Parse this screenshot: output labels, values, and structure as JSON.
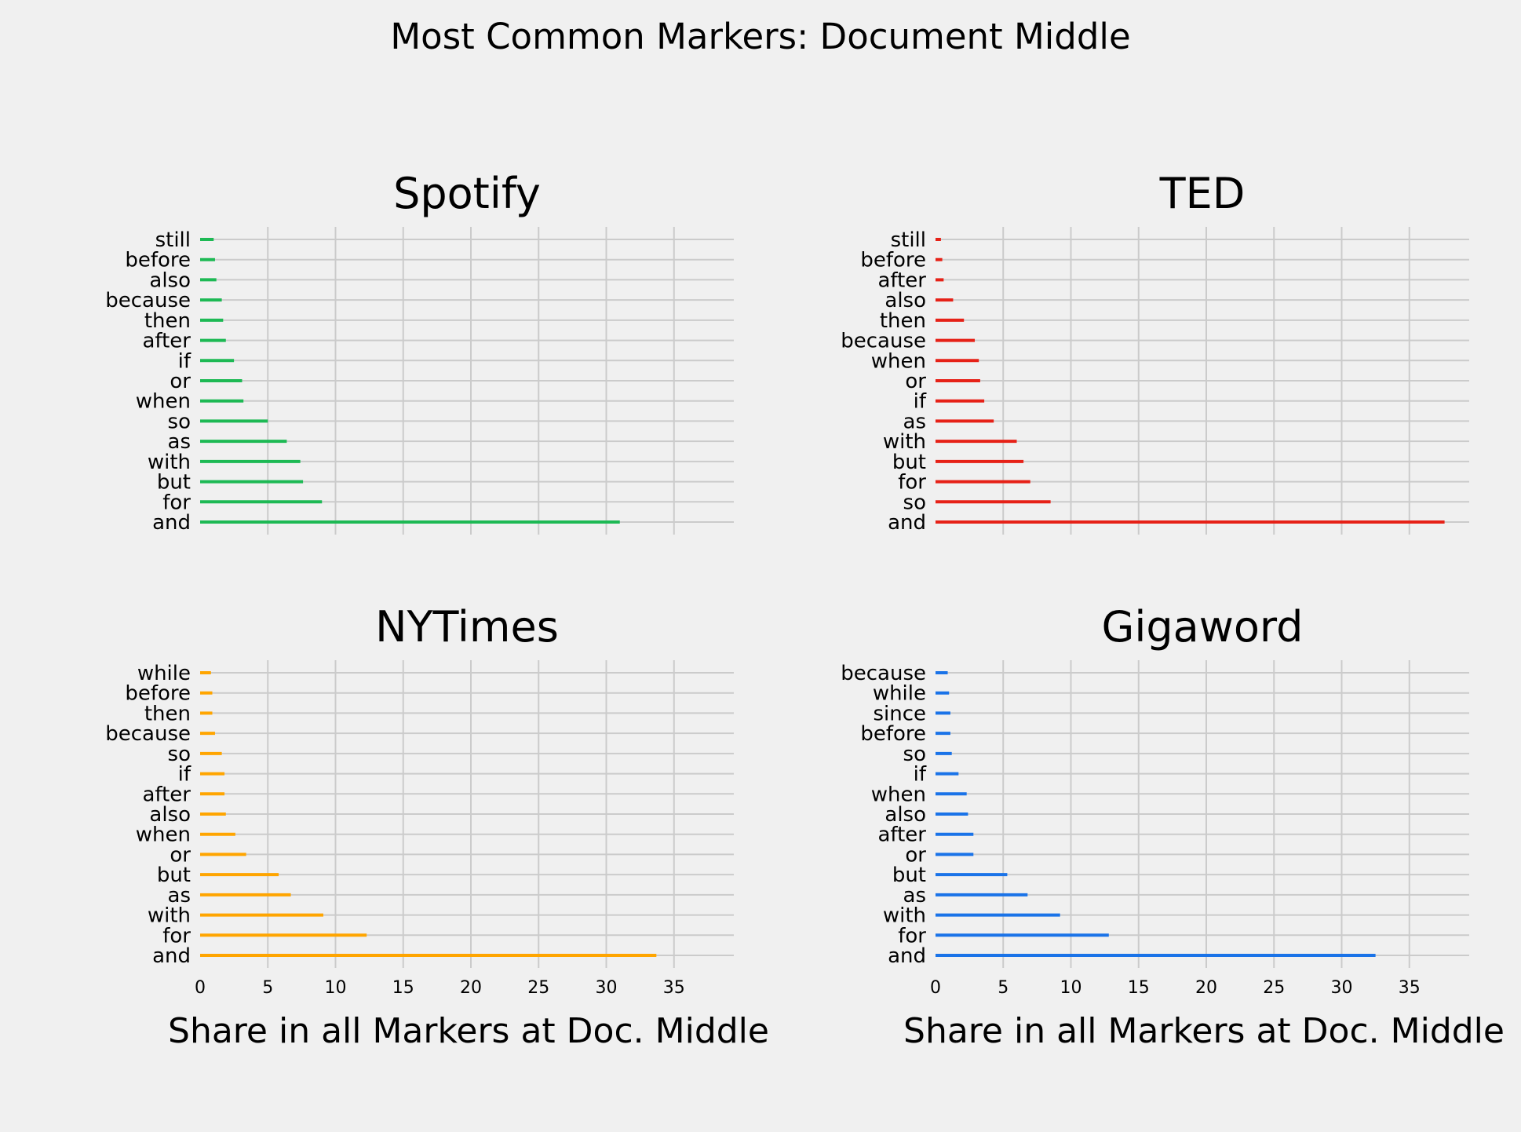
{
  "figure_title": "Most Common Markers: Document Middle",
  "colors": {
    "background": "#f0f0f0",
    "grid": "#cbcbcb"
  },
  "chart_data": [
    {
      "type": "bar",
      "orientation": "horizontal",
      "title": "Spotify",
      "color": "#1db954",
      "xlabel": "",
      "xlim": [
        0,
        39
      ],
      "xticks": [
        0,
        5,
        10,
        15,
        20,
        25,
        30,
        35
      ],
      "grid": true,
      "categories": [
        "and",
        "for",
        "but",
        "with",
        "as",
        "so",
        "when",
        "or",
        "if",
        "after",
        "then",
        "because",
        "also",
        "before",
        "still"
      ],
      "values": [
        31.0,
        9.0,
        7.6,
        7.4,
        6.4,
        5.0,
        3.2,
        3.1,
        2.5,
        1.9,
        1.7,
        1.6,
        1.2,
        1.1,
        1.0
      ]
    },
    {
      "type": "bar",
      "orientation": "horizontal",
      "title": "TED",
      "color": "#e62117",
      "xlabel": "",
      "xlim": [
        0,
        39
      ],
      "xticks": [
        0,
        5,
        10,
        15,
        20,
        25,
        30,
        35
      ],
      "grid": true,
      "categories": [
        "and",
        "so",
        "for",
        "but",
        "with",
        "as",
        "if",
        "or",
        "when",
        "because",
        "then",
        "also",
        "after",
        "before",
        "still"
      ],
      "values": [
        37.6,
        8.5,
        7.0,
        6.5,
        6.0,
        4.3,
        3.6,
        3.3,
        3.2,
        2.9,
        2.1,
        1.3,
        0.6,
        0.5,
        0.4
      ]
    },
    {
      "type": "bar",
      "orientation": "horizontal",
      "title": "NYTimes",
      "color": "#ffa500",
      "xlabel": "Share in all Markers at Doc. Middle",
      "xlim": [
        0,
        39
      ],
      "xticks": [
        0,
        5,
        10,
        15,
        20,
        25,
        30,
        35
      ],
      "grid": true,
      "categories": [
        "and",
        "for",
        "with",
        "as",
        "but",
        "or",
        "when",
        "also",
        "after",
        "if",
        "so",
        "because",
        "then",
        "before",
        "while"
      ],
      "values": [
        33.7,
        12.3,
        9.1,
        6.7,
        5.8,
        3.4,
        2.6,
        1.9,
        1.8,
        1.8,
        1.6,
        1.1,
        0.9,
        0.9,
        0.8
      ]
    },
    {
      "type": "bar",
      "orientation": "horizontal",
      "title": "Gigaword",
      "color": "#1a73e8",
      "xlabel": "Share in all Markers at Doc. Middle",
      "xlim": [
        0,
        39
      ],
      "xticks": [
        0,
        5,
        10,
        15,
        20,
        25,
        30,
        35
      ],
      "grid": true,
      "categories": [
        "and",
        "for",
        "with",
        "as",
        "but",
        "or",
        "after",
        "also",
        "when",
        "if",
        "so",
        "before",
        "since",
        "while",
        "because"
      ],
      "values": [
        32.5,
        12.8,
        9.2,
        6.8,
        5.3,
        2.8,
        2.8,
        2.4,
        2.3,
        1.7,
        1.2,
        1.1,
        1.1,
        1.0,
        0.9
      ]
    }
  ]
}
